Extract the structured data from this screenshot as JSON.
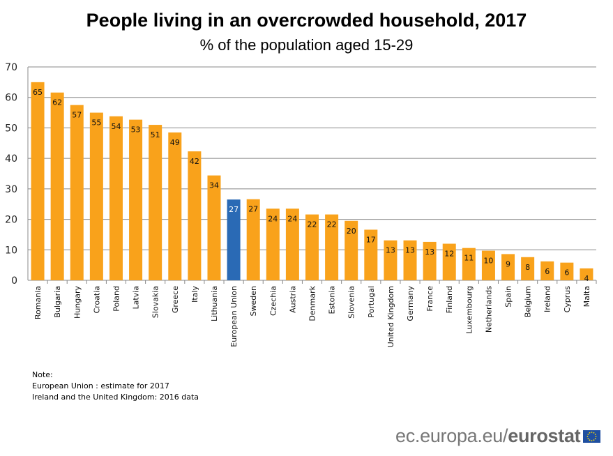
{
  "chart_data": {
    "type": "bar",
    "title": "People living in an overcrowded household, 2017",
    "subtitle": "% of the population aged 15-29",
    "xlabel": "",
    "ylabel": "",
    "ylim": [
      0,
      70
    ],
    "yticks": [
      0,
      10,
      20,
      30,
      40,
      50,
      60,
      70
    ],
    "grid": true,
    "categories": [
      "Romania",
      "Bulgaria",
      "Hungary",
      "Croatia",
      "Poland",
      "Latvia",
      "Slovakia",
      "Greece",
      "Italy",
      "Lithuania",
      "European Union",
      "Sweden",
      "Czechia",
      "Austria",
      "Denmark",
      "Estonia",
      "Slovenia",
      "Portugal",
      "United Kingdom",
      "Germany",
      "France",
      "Finland",
      "Luxembourg",
      "Netherlands",
      "Spain",
      "Belgium",
      "Ireland",
      "Cyprus",
      "Malta"
    ],
    "values": [
      65.0,
      61.6,
      57.5,
      55.0,
      53.8,
      52.7,
      51.0,
      48.5,
      42.3,
      34.4,
      26.5,
      26.6,
      23.5,
      23.5,
      21.6,
      21.6,
      19.5,
      16.6,
      13.1,
      13.1,
      12.6,
      12.0,
      10.6,
      9.7,
      8.6,
      7.6,
      6.2,
      5.8,
      3.9
    ],
    "data_labels": [
      "65",
      "62",
      "57",
      "55",
      "54",
      "53",
      "51",
      "49",
      "42",
      "34",
      "27",
      "27",
      "24",
      "24",
      "22",
      "22",
      "20",
      "17",
      "13",
      "13",
      "13",
      "12",
      "11",
      "10",
      "9",
      "8",
      "6",
      "6",
      "4"
    ],
    "colors": {
      "default": "#f9a21b",
      "highlight": "#2a6ab5",
      "highlight_category": "European Union",
      "grid": "#888888"
    }
  },
  "notes": [
    "Note:",
    "European Union : estimate for 2017",
    "Ireland and the United Kingdom: 2016 data"
  ],
  "footer": {
    "site": "ec.europa.eu/",
    "brand": "eurostat"
  }
}
